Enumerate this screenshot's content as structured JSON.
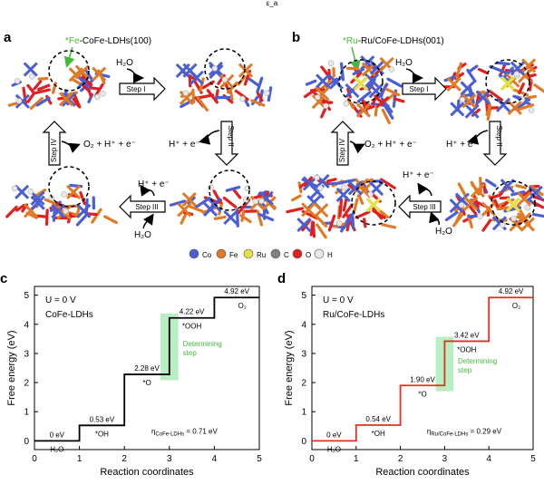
{
  "figure_top_remnant": "ε_a",
  "panel_a": {
    "letter": "a",
    "site_label_prefix": "*Fe",
    "site_label_rest": "-CoFe-LDHs(100)",
    "step1": "Step I",
    "step2": "Step II",
    "step3": "Step III",
    "step4": "Step IV",
    "h2o_top": "H₂O",
    "h2o_bottom": "H₂O",
    "o2_release": "O₂ + H⁺ + e⁻",
    "step2_release": "H⁺ + e⁻",
    "step3_release": "H⁺ + e⁻"
  },
  "panel_b": {
    "letter": "b",
    "site_label_prefix": "*Ru",
    "site_label_rest": "-Ru/CoFe-LDHs(001)",
    "step1": "Step I",
    "step2": "Step II",
    "step3": "Step III",
    "step4": "Step IV",
    "h2o_top": "H₂O",
    "h2o_bottom": "H₂O",
    "o2_release": "O₂ + H⁺ + e⁻",
    "step2_release": "H⁺ + e⁻",
    "step3_release": "H⁺ + e⁻"
  },
  "legend": [
    {
      "label": "Co",
      "color": "#4a5fd4"
    },
    {
      "label": "Fe",
      "color": "#e07a24"
    },
    {
      "label": "Ru",
      "color": "#e4e04a"
    },
    {
      "label": "C",
      "color": "#808080"
    },
    {
      "label": "O",
      "color": "#e02020"
    },
    {
      "label": "H",
      "color": "#e8e8e8"
    }
  ],
  "colors": {
    "co": "#4a5fd4",
    "fe": "#e07a24",
    "ru": "#e4e04a",
    "o": "#e02020",
    "h": "#e8e8e8",
    "c": "#808080",
    "green": "#47b83a",
    "highlight": "#b8efc2",
    "red_line": "#e03020"
  },
  "chart_data": [
    {
      "type": "line",
      "panel": "c",
      "condition": "U = 0 V",
      "material": "CoFe-LDHs",
      "xlabel": "Reaction coordinates",
      "ylabel": "Free energy (eV)",
      "xlim": [
        0,
        5
      ],
      "ylim": [
        -0.3,
        5.3
      ],
      "xticks": [
        0,
        1,
        2,
        3,
        4,
        5
      ],
      "yticks": [
        0,
        1,
        2,
        3,
        4,
        5
      ],
      "steps": [
        {
          "x0": 0,
          "x1": 1,
          "y": 0,
          "value_label": "0 eV",
          "species": "H₂O"
        },
        {
          "x0": 1,
          "x1": 2,
          "y": 0.53,
          "value_label": "0.53 eV",
          "species": "*OH"
        },
        {
          "x0": 2,
          "x1": 3,
          "y": 2.28,
          "value_label": "2.28 eV",
          "species": "*O"
        },
        {
          "x0": 3,
          "x1": 4,
          "y": 4.22,
          "value_label": "4.22 eV",
          "species": "*OOH"
        },
        {
          "x0": 4,
          "x1": 5,
          "y": 4.92,
          "value_label": "4.92 eV",
          "species": "O₂"
        }
      ],
      "determining_step": "Determining step",
      "eta_symbol": "η",
      "eta_sub": "CoFe-LDHs",
      "eta_value": "= 0.71 eV",
      "line_color": "#000000"
    },
    {
      "type": "line",
      "panel": "d",
      "condition": "U = 0 V",
      "material": "Ru/CoFe-LDHs",
      "xlabel": "Reaction coordinates",
      "ylabel": "Free energy (eV)",
      "xlim": [
        0,
        5
      ],
      "ylim": [
        -0.3,
        5.3
      ],
      "xticks": [
        0,
        1,
        2,
        3,
        4,
        5
      ],
      "yticks": [
        0,
        1,
        2,
        3,
        4,
        5
      ],
      "steps": [
        {
          "x0": 0,
          "x1": 1,
          "y": 0,
          "value_label": "0 eV",
          "species": "H₂O"
        },
        {
          "x0": 1,
          "x1": 2,
          "y": 0.54,
          "value_label": "0.54 eV",
          "species": "*OH"
        },
        {
          "x0": 2,
          "x1": 3,
          "y": 1.9,
          "value_label": "1.90 eV",
          "species": "*O"
        },
        {
          "x0": 3,
          "x1": 4,
          "y": 3.42,
          "value_label": "3.42 eV",
          "species": "*OOH"
        },
        {
          "x0": 4,
          "x1": 5,
          "y": 4.92,
          "value_label": "4.92 eV",
          "species": "O₂"
        }
      ],
      "determining_step": "Determining step",
      "eta_symbol": "η",
      "eta_sub": "Ru/CoFe-LDHs",
      "eta_value": "= 0.29 eV",
      "line_color": "#e03020"
    }
  ]
}
